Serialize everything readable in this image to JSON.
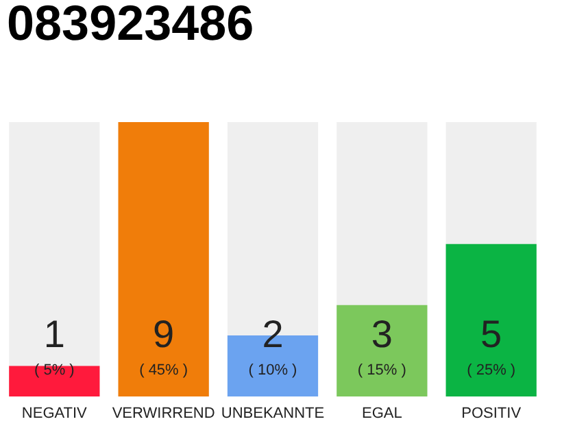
{
  "chart_data": {
    "type": "bar",
    "title": "083923486",
    "categories": [
      "NEGATIV",
      "VERWIRREND",
      "UNBEKANNTE",
      "EGAL",
      "POSITIV"
    ],
    "values": [
      1,
      9,
      2,
      3,
      5
    ],
    "colors": [
      "#ff1a3c",
      "#f07d0a",
      "#6ba3f0",
      "#7cc85c",
      "#0bb444"
    ],
    "ylim": [
      0,
      9
    ],
    "data_labels": true,
    "annotations": [
      "( 5% )",
      "( 45% )",
      "( 10% )",
      "( 15% )",
      "( 25% )"
    ]
  }
}
